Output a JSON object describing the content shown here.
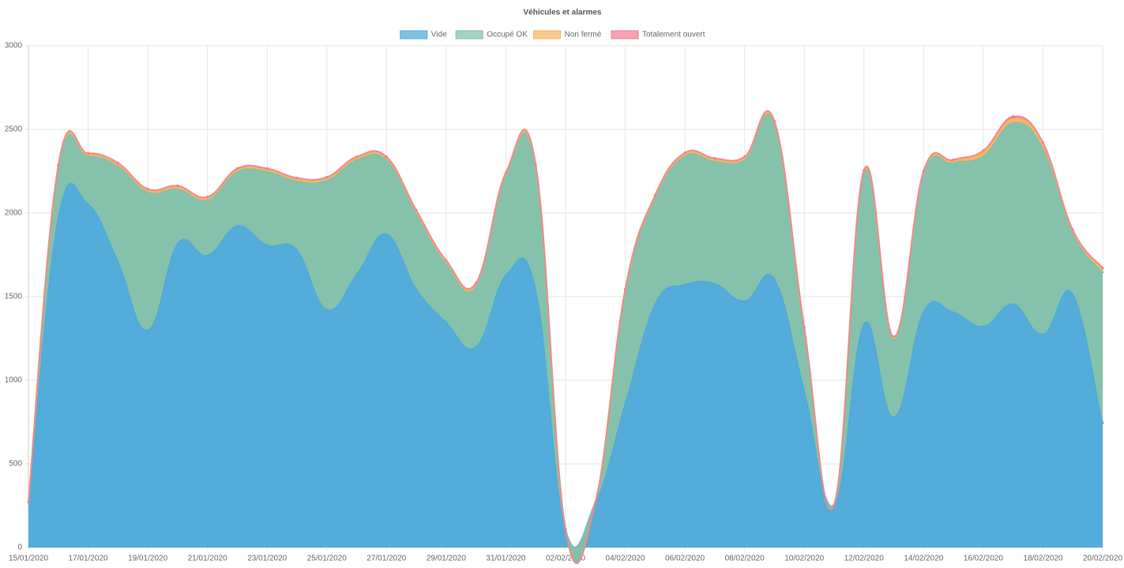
{
  "chart_data": {
    "type": "area",
    "stacked": true,
    "title": "Véhicules et alarmes",
    "categories": [
      "15/01/2020",
      null,
      "17/01/2020",
      null,
      "19/01/2020",
      null,
      "21/01/2020",
      null,
      "23/01/2020",
      null,
      "25/01/2020",
      null,
      "27/01/2020",
      null,
      "29/01/2020",
      null,
      "31/01/2020",
      null,
      "02/02/2020",
      null,
      "04/02/2020",
      null,
      "06/02/2020",
      null,
      "08/02/2020",
      null,
      "10/02/2020",
      null,
      "12/02/2020",
      null,
      "14/02/2020",
      null,
      "16/02/2020",
      null,
      "18/02/2020",
      null,
      "20/02/2020"
    ],
    "series": [
      {
        "name": "Vide",
        "color": "#4aa8d8",
        "values": [
          270,
          1986,
          2057,
          1717,
          1302,
          1821,
          1750,
          1925,
          1811,
          1783,
          1425,
          1637,
          1877,
          1550,
          1350,
          1203,
          1632,
          1552,
          108,
          269,
          870,
          1460,
          1575,
          1580,
          1476,
          1608,
          950,
          255,
          1340,
          783,
          1415,
          1410,
          1325,
          1458,
          1278,
          1519,
          745
        ]
      },
      {
        "name": "Occupé OK",
        "color": "#80bfa6",
        "values": [
          0,
          283,
          283,
          566,
          825,
          325,
          330,
          325,
          439,
          410,
          773,
          683,
          443,
          450,
          350,
          363,
          594,
          721,
          0,
          0,
          658,
          630,
          769,
          731,
          844,
          925,
          350,
          0,
          900,
          462,
          821,
          892,
          1019,
          1084,
          1114,
          363,
          901
        ]
      },
      {
        "name": "Non fermé",
        "color": "#f2b45c",
        "values": [
          0,
          12,
          12,
          12,
          12,
          12,
          12,
          12,
          12,
          12,
          12,
          12,
          12,
          12,
          12,
          12,
          12,
          12,
          0,
          0,
          12,
          12,
          12,
          12,
          12,
          12,
          12,
          0,
          12,
          12,
          12,
          12,
          25,
          25,
          25,
          12,
          20
        ]
      },
      {
        "name": "Totalement ouvert",
        "color": "#f27a90",
        "values": [
          0,
          5,
          5,
          5,
          5,
          5,
          5,
          5,
          5,
          5,
          5,
          5,
          5,
          5,
          5,
          5,
          5,
          5,
          0,
          0,
          5,
          5,
          5,
          5,
          5,
          5,
          5,
          0,
          5,
          5,
          5,
          5,
          5,
          10,
          5,
          5,
          5
        ]
      }
    ],
    "ylim": [
      0,
      3000
    ],
    "yticks": [
      0,
      500,
      1000,
      1500,
      2000,
      2500,
      3000
    ],
    "grid": true,
    "legend": "top"
  }
}
